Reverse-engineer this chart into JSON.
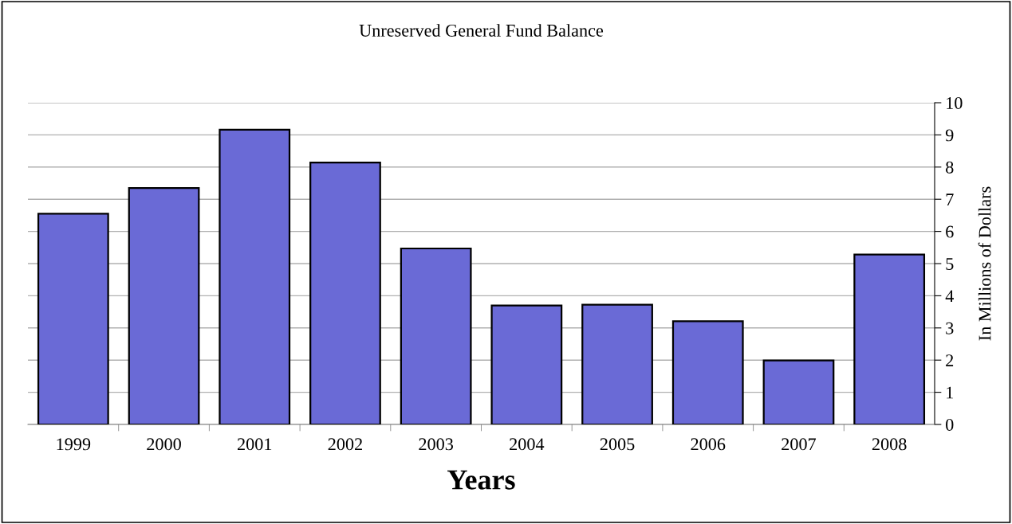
{
  "chart_data": {
    "type": "bar",
    "title": "Unreserved General Fund Balance",
    "xlabel": "Years",
    "ylabel": "In Millions of Dollars",
    "categories": [
      "1999",
      "2000",
      "2001",
      "2002",
      "2003",
      "2004",
      "2005",
      "2006",
      "2007",
      "2008"
    ],
    "values": [
      6.55,
      7.35,
      9.16,
      8.14,
      5.47,
      3.7,
      3.72,
      3.21,
      1.99,
      5.28
    ],
    "color": "#6a6ad6",
    "ylim": [
      0,
      10
    ],
    "yticks": [
      0,
      1,
      2,
      3,
      4,
      5,
      6,
      7,
      8,
      9,
      10
    ],
    "grid": "y"
  }
}
